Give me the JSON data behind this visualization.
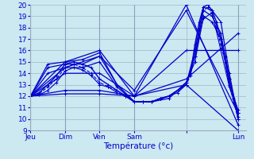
{
  "xlabel": "Température (°c)",
  "background_color": "#cce8f0",
  "line_color": "#0000cc",
  "grid_color": "#99aabb",
  "x_tick_labels": [
    "Jeu",
    "Dim",
    "Ven",
    "Sam",
    "",
    "Lun"
  ],
  "x_tick_positions": [
    0,
    0.167,
    0.333,
    0.5,
    0.75,
    1.0
  ],
  "ylim": [
    9,
    20
  ],
  "xlim": [
    0,
    1.04
  ],
  "yticks": [
    9,
    10,
    11,
    12,
    13,
    14,
    15,
    16,
    17,
    18,
    19,
    20
  ],
  "vlines": [
    0,
    0.167,
    0.333,
    0.5,
    1.0
  ],
  "lines": [
    {
      "x": [
        0,
        0.083,
        0.167,
        0.25,
        0.333,
        0.417,
        0.5,
        0.583,
        0.667,
        0.75,
        0.792,
        0.833,
        0.875,
        0.917,
        0.958,
        1.0
      ],
      "y": [
        12,
        14.8,
        15.0,
        15.2,
        15.8,
        13.0,
        11.5,
        11.5,
        12.0,
        13.0,
        16.0,
        19.8,
        19.5,
        18.5,
        14.0,
        10.0
      ],
      "style": "-",
      "marker": "+",
      "lw": 0.9,
      "ms": 2.5
    },
    {
      "x": [
        0,
        0.083,
        0.167,
        0.25,
        0.333,
        0.417,
        0.5,
        0.583,
        0.667,
        0.75,
        0.792,
        0.833,
        0.875,
        0.917,
        0.958,
        1.0
      ],
      "y": [
        12,
        14.5,
        14.8,
        14.8,
        15.5,
        13.0,
        11.5,
        11.5,
        12.0,
        13.0,
        15.5,
        19.5,
        19.0,
        17.5,
        13.5,
        10.5
      ],
      "style": "-",
      "marker": "+",
      "lw": 0.9,
      "ms": 2.5
    },
    {
      "x": [
        0,
        0.083,
        0.167,
        0.25,
        0.333,
        0.417,
        0.5,
        0.583,
        0.667,
        0.75,
        0.792,
        0.833,
        0.875,
        0.917,
        0.958,
        1.0
      ],
      "y": [
        12,
        14.0,
        14.5,
        14.5,
        15.0,
        12.8,
        11.5,
        11.5,
        11.8,
        13.2,
        15.0,
        19.0,
        18.5,
        17.0,
        13.0,
        10.8
      ],
      "style": "-",
      "marker": "+",
      "lw": 0.9,
      "ms": 2.5
    },
    {
      "x": [
        0,
        0.167,
        0.333,
        0.5,
        0.75,
        1.0
      ],
      "y": [
        12,
        15.0,
        16.0,
        12.0,
        20.0,
        9.5
      ],
      "style": "-",
      "marker": "+",
      "lw": 0.9,
      "ms": 2.5
    },
    {
      "x": [
        0,
        0.167,
        0.333,
        0.5,
        0.75,
        1.0
      ],
      "y": [
        12,
        14.5,
        15.5,
        12.5,
        19.5,
        10.5
      ],
      "style": "-",
      "marker": "+",
      "lw": 0.9,
      "ms": 2.5
    },
    {
      "x": [
        0,
        0.167,
        0.333,
        0.5,
        0.75,
        1.0
      ],
      "y": [
        12,
        14.0,
        14.0,
        12.0,
        16.0,
        16.0
      ],
      "style": "-",
      "marker": "+",
      "lw": 0.9,
      "ms": 2.5
    },
    {
      "x": [
        0,
        0.167,
        0.333,
        0.5,
        0.75,
        1.0
      ],
      "y": [
        12,
        12.5,
        12.5,
        12.0,
        13.5,
        17.5
      ],
      "style": "-",
      "marker": "+",
      "lw": 0.9,
      "ms": 2.5
    },
    {
      "x": [
        0,
        0.167,
        0.333,
        0.5,
        0.75,
        1.0
      ],
      "y": [
        12,
        12.2,
        12.2,
        12.0,
        13.0,
        9.0
      ],
      "style": "-",
      "marker": "+",
      "lw": 0.9,
      "ms": 2.5
    },
    {
      "x": [
        0,
        0.042,
        0.083,
        0.125,
        0.167,
        0.208,
        0.25,
        0.292,
        0.333,
        0.375,
        0.417,
        0.458,
        0.5,
        0.542,
        0.583,
        0.625,
        0.667,
        0.708,
        0.75,
        0.771,
        0.792,
        0.813,
        0.833,
        0.854,
        0.875,
        0.896,
        0.917,
        0.938,
        0.958,
        0.979,
        1.0
      ],
      "y": [
        12,
        12.3,
        13.0,
        13.8,
        14.8,
        15.0,
        14.8,
        14.5,
        13.5,
        13.0,
        12.5,
        12.0,
        11.5,
        11.5,
        11.5,
        11.8,
        12.0,
        12.5,
        13.2,
        14.0,
        16.5,
        18.5,
        19.8,
        20.0,
        19.5,
        18.5,
        17.0,
        15.5,
        13.5,
        11.8,
        10.2
      ],
      "style": "-",
      "marker": "+",
      "lw": 1.0,
      "ms": 2.5
    },
    {
      "x": [
        0,
        0.042,
        0.083,
        0.125,
        0.167,
        0.208,
        0.25,
        0.292,
        0.333,
        0.375,
        0.417,
        0.458,
        0.5,
        0.542,
        0.583,
        0.625,
        0.667,
        0.708,
        0.75,
        0.771,
        0.792,
        0.813,
        0.833,
        0.854,
        0.875,
        0.896,
        0.917,
        0.938,
        0.958,
        0.979,
        1.0
      ],
      "y": [
        12,
        12.2,
        12.8,
        13.5,
        14.5,
        14.8,
        14.5,
        14.0,
        13.2,
        12.8,
        12.5,
        12.0,
        11.5,
        11.5,
        11.5,
        11.8,
        12.0,
        12.5,
        13.0,
        13.8,
        16.0,
        18.0,
        19.5,
        19.8,
        19.2,
        18.0,
        16.5,
        15.0,
        13.0,
        11.5,
        10.0
      ],
      "style": "--",
      "marker": "+",
      "lw": 0.8,
      "ms": 2.5
    },
    {
      "x": [
        0,
        0.042,
        0.083,
        0.125,
        0.167,
        0.208,
        0.25,
        0.292,
        0.333,
        0.375,
        0.417,
        0.458,
        0.5,
        0.542,
        0.583,
        0.625,
        0.667,
        0.708,
        0.75,
        0.792,
        0.833,
        0.875,
        0.917,
        0.958,
        1.0
      ],
      "y": [
        12,
        12.1,
        12.5,
        13.2,
        14.2,
        14.5,
        14.3,
        13.8,
        13.0,
        12.8,
        12.3,
        12.0,
        11.5,
        11.5,
        11.5,
        11.8,
        12.0,
        12.3,
        13.0,
        15.5,
        18.8,
        19.3,
        16.0,
        12.8,
        10.5
      ],
      "style": "-",
      "marker": "+",
      "lw": 0.8,
      "ms": 2.5
    }
  ]
}
